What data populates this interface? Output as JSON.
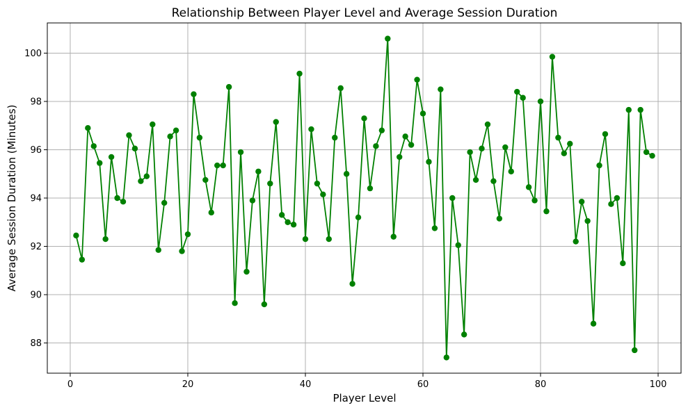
{
  "chart_data": {
    "type": "line",
    "title": "Relationship Between Player Level and Average Session Duration",
    "xlabel": "Player Level",
    "ylabel": "Average Session Duration (Minutes)",
    "xlim": [
      -3.9,
      103.9
    ],
    "ylim": [
      86.75,
      101.25
    ],
    "xticks": [
      0,
      20,
      40,
      60,
      80,
      100
    ],
    "yticks": [
      88,
      90,
      92,
      94,
      96,
      98,
      100
    ],
    "grid": true,
    "color": "#008000",
    "marker": "circle",
    "x": [
      1,
      2,
      3,
      4,
      5,
      6,
      7,
      8,
      9,
      10,
      11,
      12,
      13,
      14,
      15,
      16,
      17,
      18,
      19,
      20,
      21,
      22,
      23,
      24,
      25,
      26,
      27,
      28,
      29,
      30,
      31,
      32,
      33,
      34,
      35,
      36,
      37,
      38,
      39,
      40,
      41,
      42,
      43,
      44,
      45,
      46,
      47,
      48,
      49,
      50,
      51,
      52,
      53,
      54,
      55,
      56,
      57,
      58,
      59,
      60,
      61,
      62,
      63,
      64,
      65,
      66,
      67,
      68,
      69,
      70,
      71,
      72,
      73,
      74,
      75,
      76,
      77,
      78,
      79,
      80,
      81,
      82,
      83,
      84,
      85,
      86,
      87,
      88,
      89,
      90,
      91,
      92,
      93,
      94,
      95,
      96,
      97,
      98,
      99
    ],
    "y": [
      92.45,
      91.45,
      96.9,
      96.15,
      95.45,
      92.3,
      95.7,
      94.0,
      93.85,
      96.6,
      96.05,
      94.7,
      94.9,
      97.05,
      91.85,
      93.8,
      96.55,
      96.8,
      91.8,
      92.5,
      98.3,
      96.5,
      94.75,
      93.4,
      95.35,
      95.35,
      98.6,
      89.65,
      95.9,
      90.95,
      93.9,
      95.1,
      89.6,
      94.6,
      97.15,
      93.3,
      93.0,
      92.9,
      99.15,
      92.3,
      96.85,
      94.6,
      94.15,
      92.3,
      96.5,
      98.55,
      95.0,
      90.45,
      93.2,
      97.3,
      94.4,
      96.15,
      96.8,
      100.6,
      92.4,
      95.7,
      96.55,
      96.2,
      98.9,
      97.5,
      95.5,
      92.75,
      98.5,
      87.4,
      94.0,
      92.05,
      88.35,
      95.9,
      94.75,
      96.05,
      97.05,
      94.7,
      93.15,
      96.1,
      95.1,
      98.4,
      98.15,
      94.45,
      93.9,
      98.0,
      93.45,
      99.85,
      96.5,
      95.85,
      96.25,
      92.2,
      93.85,
      93.05,
      88.8,
      95.35,
      96.65,
      93.75,
      94.0,
      91.3,
      97.65,
      87.7,
      97.65,
      95.9,
      95.75
    ]
  }
}
